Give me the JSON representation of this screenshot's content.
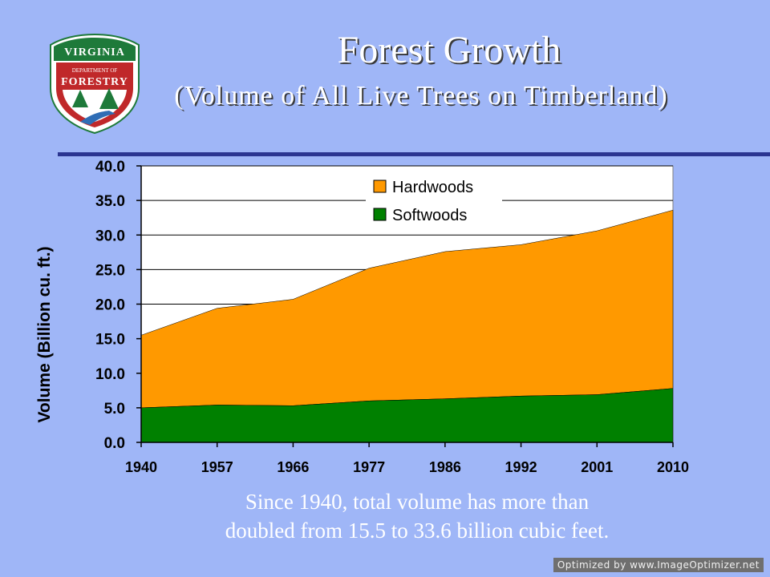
{
  "slide": {
    "title": "Forest Growth",
    "subtitle": "(Volume of All Live Trees on Timberland)",
    "caption_line1": "Since 1940, total volume has more than",
    "caption_line2": "doubled from 15.5 to 33.6 billion cubic feet.",
    "watermark": "Optimized by www.ImageOptimizer.net"
  },
  "logo": {
    "top_text": "VIRGINIA",
    "middle_text": "DEPARTMENT OF",
    "main_text": "FORESTRY",
    "colors": {
      "green": "#1e7a3a",
      "red": "#c0282a",
      "white": "#ffffff",
      "blue": "#2f6db5"
    }
  },
  "colors": {
    "background": "#9fb6f7",
    "rule": "#2b3591",
    "hardwoods": "#ff9900",
    "softwoods": "#008000",
    "plot_background": "#ffffff"
  },
  "chart_data": {
    "type": "area",
    "stacked": true,
    "title": "",
    "xlabel": "",
    "ylabel": "Volume (Billion cu. ft.)",
    "categories": [
      "1940",
      "1957",
      "1966",
      "1977",
      "1986",
      "1992",
      "2001",
      "2010"
    ],
    "ylim": [
      0,
      40
    ],
    "yticks": [
      "0.0",
      "5.0",
      "10.0",
      "15.0",
      "20.0",
      "25.0",
      "30.0",
      "35.0",
      "40.0"
    ],
    "grid": true,
    "legend_position": "top-center",
    "series": [
      {
        "name": "Softwoods",
        "color": "#008000",
        "values": [
          5.0,
          5.4,
          5.3,
          6.0,
          6.3,
          6.7,
          6.9,
          7.8
        ]
      },
      {
        "name": "Hardwoods",
        "color": "#ff9900",
        "values": [
          10.5,
          14.0,
          15.4,
          19.2,
          21.3,
          21.9,
          23.7,
          25.8
        ]
      }
    ],
    "legend": [
      "Hardwoods",
      "Softwoods"
    ]
  }
}
